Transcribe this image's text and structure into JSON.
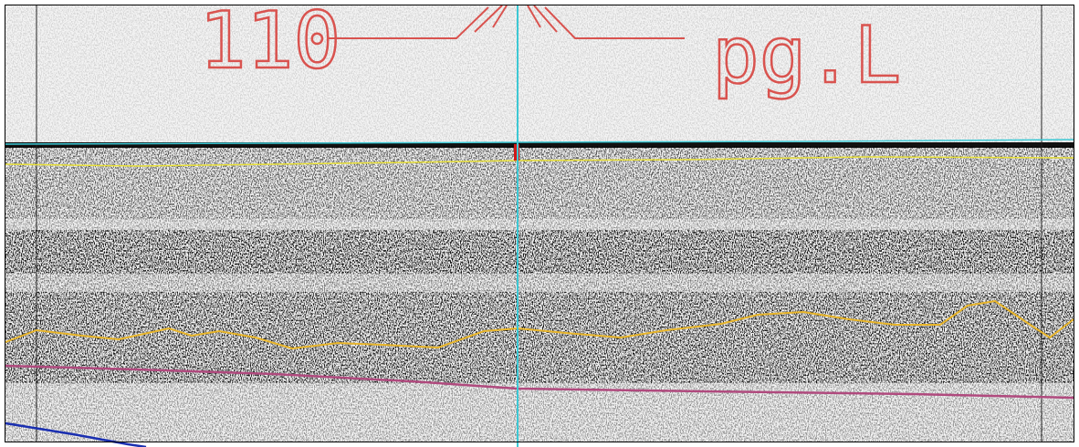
{
  "annotations": {
    "depth_label": "110",
    "line_label": "pg.L"
  }
}
